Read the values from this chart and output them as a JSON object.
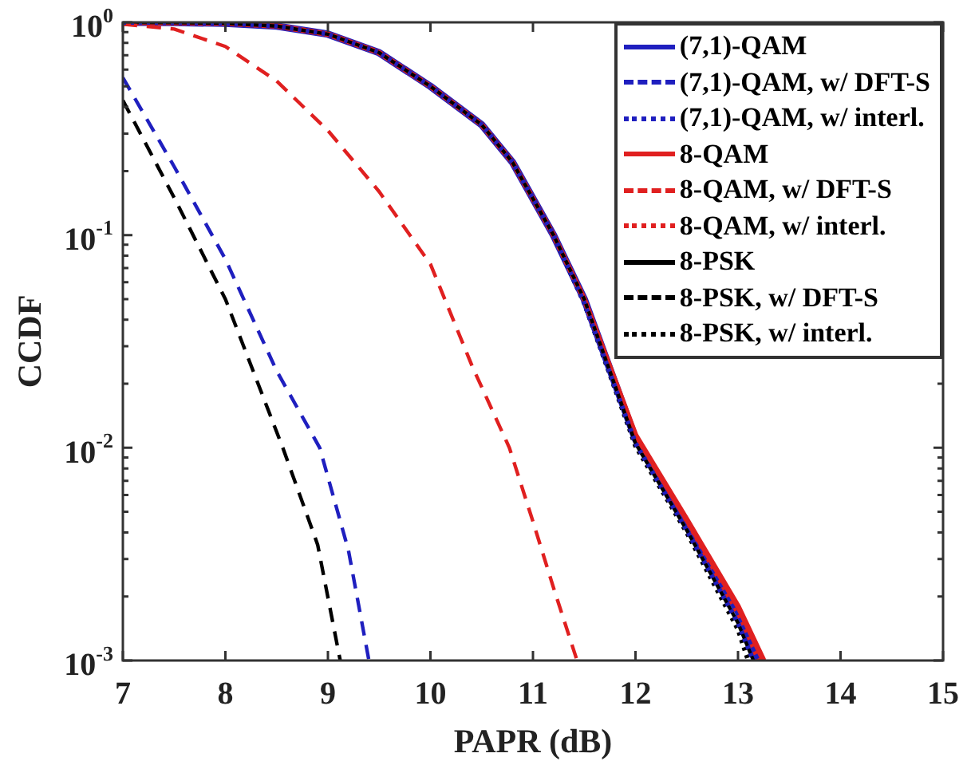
{
  "chart_data": {
    "type": "line",
    "xlabel": "PAPR (dB)",
    "ylabel": "CCDF",
    "log": "y",
    "xlim": [
      7,
      15
    ],
    "xticks": [
      7,
      8,
      9,
      10,
      11,
      12,
      13,
      14,
      15
    ],
    "ylim": [
      0.001,
      1
    ],
    "yticks": [
      {
        "value": 1,
        "label": "10$^{0}$"
      },
      {
        "value": 0.1,
        "label": "10$^{-1}$"
      },
      {
        "value": 0.01,
        "label": "10$^{-2}$"
      },
      {
        "value": 0.001,
        "label": "10$^{-3}$"
      }
    ],
    "grid": false,
    "legend": "top right",
    "marker": "none",
    "series": [
      {
        "name": "(7,1)-QAM",
        "color": "#1f1fbf",
        "line_style": "solid",
        "x": [
          7,
          7.5,
          8,
          8.5,
          9,
          9.5,
          10,
          10.5,
          10.8,
          11.2,
          11.5,
          12,
          12.5,
          13,
          13.2
        ],
        "values": [
          1,
          0.998,
          0.99,
          0.96,
          0.88,
          0.72,
          0.5,
          0.33,
          0.22,
          0.1,
          0.05,
          0.011,
          0.0043,
          0.0017,
          0.001
        ]
      },
      {
        "name": "(7,1)-QAM, w/ DFT-S",
        "color": "#1f1fbf",
        "line_style": "dashed",
        "x": [
          7,
          7.5,
          8,
          8.5,
          8.92,
          9.2,
          9.4
        ],
        "values": [
          0.55,
          0.21,
          0.077,
          0.023,
          0.01,
          0.0033,
          0.001
        ]
      },
      {
        "name": "(7,1)-QAM, w/ interl.",
        "color": "#1f1fbf",
        "line_style": "dotted",
        "x": [
          7,
          7.5,
          8,
          8.5,
          9,
          9.5,
          10,
          10.5,
          10.8,
          11.2,
          11.5,
          12,
          12.5,
          13,
          13.15
        ],
        "values": [
          1,
          0.998,
          0.99,
          0.96,
          0.88,
          0.72,
          0.5,
          0.33,
          0.22,
          0.1,
          0.048,
          0.0105,
          0.0041,
          0.0015,
          0.001
        ]
      },
      {
        "name": "8-QAM",
        "color": "#e02020",
        "line_style": "solid",
        "x": [
          7,
          7.5,
          8,
          8.5,
          9,
          9.5,
          10,
          10.5,
          10.8,
          11.2,
          11.5,
          12,
          12.5,
          13,
          13.25
        ],
        "values": [
          1,
          0.998,
          0.99,
          0.96,
          0.88,
          0.72,
          0.5,
          0.33,
          0.22,
          0.1,
          0.05,
          0.0115,
          0.0046,
          0.0018,
          0.001
        ]
      },
      {
        "name": "8-QAM, w/ DFT-S",
        "color": "#e02020",
        "line_style": "dashed",
        "x": [
          7,
          7.5,
          8,
          8.5,
          9,
          9.5,
          10,
          10.41,
          10.77,
          11,
          11.2,
          11.43
        ],
        "values": [
          0.98,
          0.93,
          0.77,
          0.53,
          0.31,
          0.16,
          0.073,
          0.024,
          0.01,
          0.0045,
          0.0022,
          0.001
        ]
      },
      {
        "name": "8-QAM, w/ interl.",
        "color": "#e02020",
        "line_style": "dotted",
        "x": [
          7,
          7.5,
          8,
          8.5,
          9,
          9.5,
          10,
          10.5,
          10.8,
          11.2,
          11.5,
          12,
          12.5,
          13,
          13.2
        ],
        "values": [
          1,
          0.998,
          0.99,
          0.96,
          0.88,
          0.72,
          0.5,
          0.33,
          0.22,
          0.1,
          0.05,
          0.0112,
          0.0044,
          0.0016,
          0.001
        ]
      },
      {
        "name": "8-PSK",
        "color": "#000000",
        "line_style": "solid",
        "x": [
          7,
          7.5,
          8,
          8.5,
          9,
          9.5,
          10,
          10.5,
          10.8,
          11.2,
          11.5,
          12,
          12.5,
          13,
          13.15
        ],
        "values": [
          1,
          0.998,
          0.99,
          0.96,
          0.88,
          0.72,
          0.5,
          0.33,
          0.22,
          0.1,
          0.05,
          0.0105,
          0.0041,
          0.0015,
          0.001
        ]
      },
      {
        "name": "8-PSK, w/ DFT-S",
        "color": "#000000",
        "line_style": "dashed",
        "x": [
          7,
          7.5,
          8,
          8.56,
          8.9,
          9.12
        ],
        "values": [
          0.43,
          0.15,
          0.05,
          0.01,
          0.0035,
          0.001
        ]
      },
      {
        "name": "8-PSK, w/ interl.",
        "color": "#000000",
        "line_style": "dotted",
        "x": [
          7,
          7.5,
          8,
          8.5,
          9,
          9.5,
          10,
          10.5,
          10.8,
          11.2,
          11.5,
          12,
          12.5,
          13,
          13.1
        ],
        "values": [
          1,
          0.998,
          0.99,
          0.96,
          0.88,
          0.72,
          0.5,
          0.33,
          0.22,
          0.1,
          0.048,
          0.0102,
          0.004,
          0.0014,
          0.001
        ]
      }
    ]
  }
}
